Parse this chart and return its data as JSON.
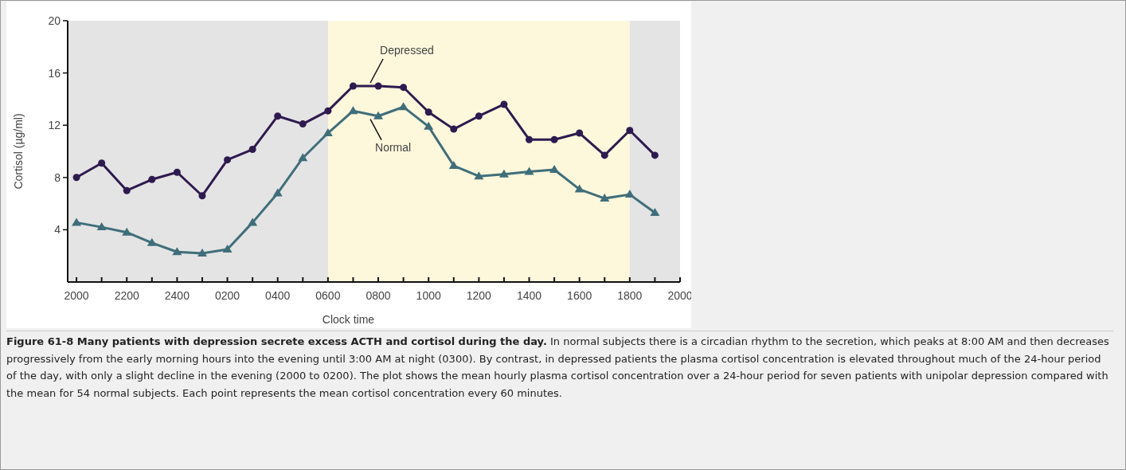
{
  "chart_data": {
    "type": "line",
    "title": "Figure 61-8 Many patients with depression secrete excess ACTH and cortisol during the day.",
    "subtitle": "In normal subjects there is a circadian rhythm to the secretion, which peaks at 8:00 AM and then decreases progressively from the early morning hours into the evening until 3:00 AM at night (0300). By contrast, in depressed patients the plasma cortisol concentration is elevated throughout much of the 24-hour period of the day, with only a slight decline in the evening (2000 to 0200). The plot shows the mean hourly plasma cortisol concentration over a 24-hour period for seven patients with unipolar depression compared with the mean for 54 normal subjects. Each point represents the mean cortisol concentration every 60 minutes.",
    "xlabel": "Clock time",
    "ylabel": "Cortisol (µg/ml)",
    "categories": [
      "2000",
      null,
      "2200",
      null,
      "2400",
      null,
      "0200",
      null,
      "0400",
      null,
      "0600",
      null,
      "0800",
      null,
      "1000",
      null,
      "1200",
      null,
      "1400",
      null,
      "1600",
      null,
      "1800",
      null,
      "2000"
    ],
    "series": [
      {
        "color": "#2e1a4f",
        "marker": "circle",
        "values": [
          8.0,
          9.1,
          7.0,
          7.85,
          8.4,
          6.6,
          9.35,
          10.15,
          12.7,
          12.1,
          13.1,
          15.0,
          15.0,
          14.9,
          13.0,
          11.7,
          12.7,
          13.6,
          10.9,
          10.9,
          11.4,
          9.7,
          11.6,
          9.7,
          null
        ]
      },
      {
        "color": "#3f6e7a",
        "marker": "triangle",
        "values": [
          4.55,
          4.2,
          3.8,
          3.0,
          2.3,
          2.2,
          2.5,
          4.55,
          6.8,
          9.5,
          11.4,
          13.1,
          12.7,
          13.4,
          11.9,
          8.9,
          8.1,
          8.25,
          8.45,
          8.6,
          7.1,
          6.4,
          6.7,
          5.3,
          null
        ]
      }
    ],
    "annotations": [
      {
        "text": "Depressed",
        "x": "0800",
        "y": 15.0
      },
      {
        "text": "Normal",
        "x": "0800",
        "y": 12.7
      }
    ],
    "bands": [
      {
        "axis": "x",
        "from": "0600",
        "to": "1800",
        "color": "#fdf7dc"
      }
    ],
    "ylim": [
      0,
      20
    ],
    "yticks": [
      4,
      8,
      12,
      16,
      20
    ],
    "grid": false,
    "line_style": "solid"
  }
}
